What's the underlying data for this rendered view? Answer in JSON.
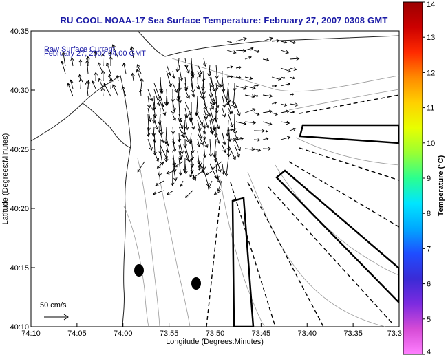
{
  "title": "RU COOL  NOAA-17  Sea Surface Temperature:  February 27, 2007 0308 GMT",
  "legend": {
    "line1": "Raw Surface Current",
    "line2": "February 27, 2007 04:00 GMT"
  },
  "scale_label": "50 cm/s",
  "x_axis": {
    "label": "Longitude (Degrees:Minutes)",
    "ticks": [
      "74:10",
      "74:05",
      "74:00",
      "73:55",
      "73:50",
      "73:45",
      "73:40",
      "73:35",
      "73:3"
    ]
  },
  "y_axis": {
    "label": "Latitude (Degrees:Minutes)",
    "ticks": [
      "40:35",
      "40:30",
      "40:25",
      "40:20",
      "40:15",
      "40:10"
    ]
  },
  "colorbar": {
    "label": "Temperature (°C)",
    "ticks": [
      "14",
      "13",
      "12",
      "11",
      "10",
      "9",
      "8",
      "7",
      "6",
      "5",
      "4"
    ],
    "colors": [
      "#9b0000",
      "#cc0000",
      "#ff2a00",
      "#ff8a00",
      "#ffd000",
      "#e8ff00",
      "#99ff33",
      "#2bff8f",
      "#00e5ff",
      "#00a8ff",
      "#1f4dff",
      "#3a2bd6",
      "#7d2be0",
      "#d64bd6",
      "#ff80ff"
    ]
  }
}
